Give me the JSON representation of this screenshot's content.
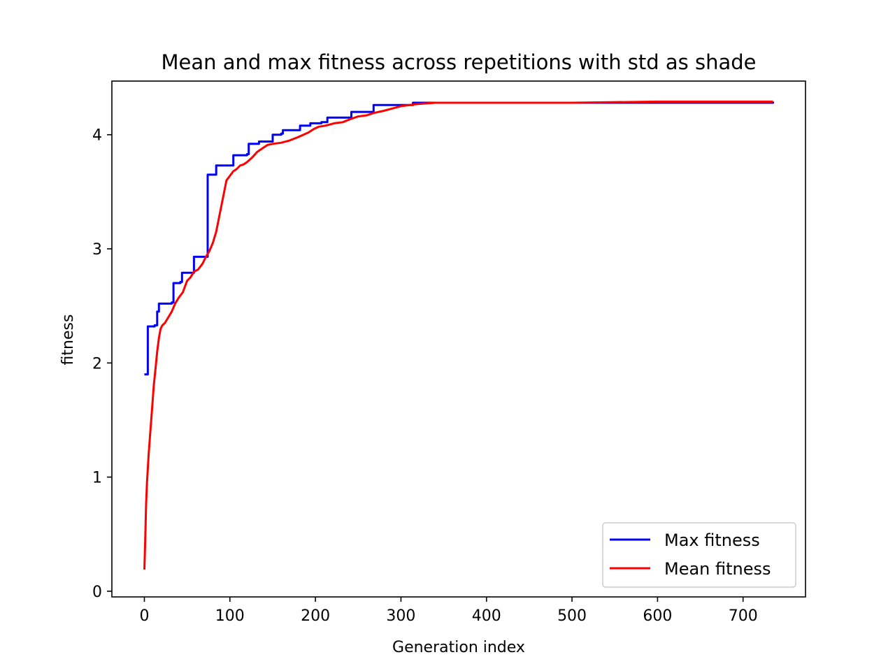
{
  "chart_data": {
    "type": "line",
    "title": "Mean and max fitness across repetitions with std as shade",
    "xlabel": "Generation index",
    "ylabel": "fitness",
    "xlim": [
      -38,
      773
    ],
    "ylim": [
      -0.05,
      4.47
    ],
    "xticks": [
      0,
      100,
      200,
      300,
      400,
      500,
      600,
      700
    ],
    "yticks": [
      0,
      1,
      2,
      3,
      4
    ],
    "grid": false,
    "legend_position": "lower-right",
    "series": [
      {
        "name": "Max fitness",
        "color": "#0000ff",
        "step": true,
        "x": [
          0,
          2,
          4,
          12,
          15,
          17,
          32,
          34,
          42,
          44,
          56,
          58,
          72,
          74,
          82,
          84,
          102,
          104,
          120,
          122,
          132,
          134,
          148,
          150,
          160,
          162,
          180,
          182,
          192,
          194,
          205,
          207,
          212,
          214,
          240,
          242,
          266,
          268,
          312,
          314,
          340,
          735
        ],
        "y": [
          1.9,
          1.9,
          2.32,
          2.33,
          2.45,
          2.52,
          2.53,
          2.7,
          2.71,
          2.79,
          2.79,
          2.93,
          2.93,
          3.65,
          3.65,
          3.73,
          3.73,
          3.82,
          3.83,
          3.92,
          3.92,
          3.94,
          3.94,
          4.0,
          4.01,
          4.04,
          4.04,
          4.08,
          4.08,
          4.1,
          4.1,
          4.11,
          4.11,
          4.15,
          4.15,
          4.2,
          4.2,
          4.26,
          4.26,
          4.28,
          4.28,
          4.29
        ]
      },
      {
        "name": "Mean fitness",
        "color": "#ff0000",
        "step": false,
        "x": [
          0,
          1,
          2,
          3,
          5,
          7,
          9,
          11,
          13,
          15,
          17,
          19,
          21,
          24,
          28,
          32,
          36,
          40,
          45,
          50,
          54,
          58,
          63,
          68,
          72,
          76,
          80,
          84,
          88,
          92,
          96,
          99,
          101,
          104,
          108,
          112,
          116,
          120,
          126,
          132,
          138,
          144,
          150,
          160,
          170,
          180,
          186,
          192,
          198,
          204,
          212,
          222,
          232,
          242,
          250,
          260,
          268,
          280,
          290,
          300,
          320,
          340,
          360,
          400,
          500,
          600,
          700,
          735
        ],
        "y": [
          0.19,
          0.45,
          0.75,
          0.95,
          1.2,
          1.4,
          1.6,
          1.8,
          1.95,
          2.1,
          2.22,
          2.3,
          2.33,
          2.35,
          2.4,
          2.45,
          2.52,
          2.57,
          2.62,
          2.72,
          2.75,
          2.8,
          2.82,
          2.87,
          2.93,
          2.98,
          3.05,
          3.15,
          3.3,
          3.45,
          3.6,
          3.63,
          3.65,
          3.68,
          3.7,
          3.73,
          3.74,
          3.76,
          3.8,
          3.85,
          3.88,
          3.91,
          3.92,
          3.93,
          3.95,
          3.98,
          4.0,
          4.02,
          4.05,
          4.07,
          4.08,
          4.1,
          4.11,
          4.14,
          4.16,
          4.17,
          4.19,
          4.21,
          4.23,
          4.25,
          4.27,
          4.28,
          4.28,
          4.28,
          4.28,
          4.29,
          4.29,
          4.29
        ]
      }
    ]
  }
}
